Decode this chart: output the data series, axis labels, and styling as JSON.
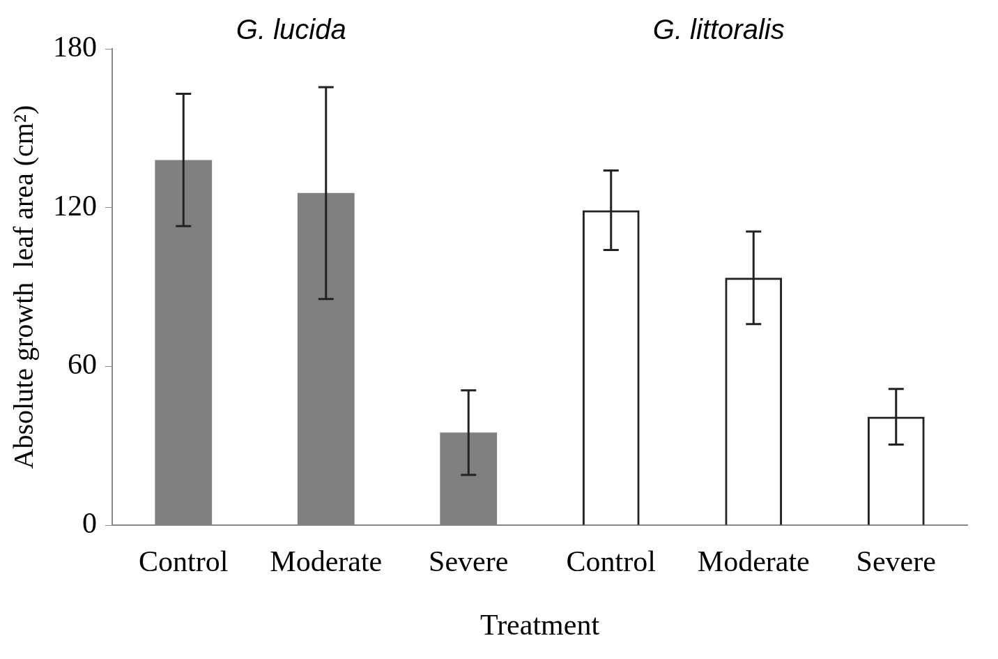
{
  "chart_data": {
    "type": "bar",
    "xlabel": "Treatment",
    "ylabel": "Absolute growth  leaf area (cm²)",
    "categories": [
      "Control",
      "Moderate",
      "Severe",
      "Control",
      "Moderate",
      "Severe"
    ],
    "values": [
      138,
      125.5,
      35,
      119,
      93.5,
      41
    ],
    "errors": [
      25,
      40,
      16,
      15,
      17.5,
      10.5
    ],
    "colors": [
      "#808080",
      "#808080",
      "#808080",
      "#222222",
      "#222222",
      "#222222"
    ],
    "ylim": [
      0,
      180
    ],
    "yticks": [
      0,
      60,
      120,
      180
    ],
    "grid": false,
    "legend": false,
    "annotations": [
      "G. lucida",
      "G. littoralis"
    ]
  }
}
